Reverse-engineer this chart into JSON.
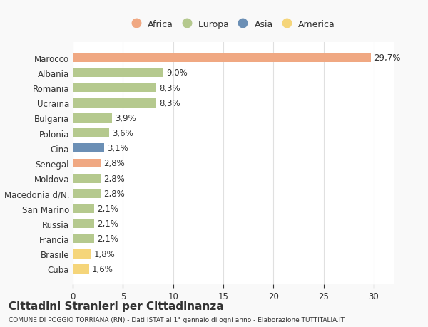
{
  "countries": [
    "Marocco",
    "Albania",
    "Romania",
    "Ucraina",
    "Bulgaria",
    "Polonia",
    "Cina",
    "Senegal",
    "Moldova",
    "Macedonia d/N.",
    "San Marino",
    "Russia",
    "Francia",
    "Brasile",
    "Cuba"
  ],
  "values": [
    29.7,
    9.0,
    8.3,
    8.3,
    3.9,
    3.6,
    3.1,
    2.8,
    2.8,
    2.8,
    2.1,
    2.1,
    2.1,
    1.8,
    1.6
  ],
  "labels": [
    "29,7%",
    "9,0%",
    "8,3%",
    "8,3%",
    "3,9%",
    "3,6%",
    "3,1%",
    "2,8%",
    "2,8%",
    "2,8%",
    "2,1%",
    "2,1%",
    "2,1%",
    "1,8%",
    "1,6%"
  ],
  "continents": [
    "Africa",
    "Europa",
    "Europa",
    "Europa",
    "Europa",
    "Europa",
    "Asia",
    "Africa",
    "Europa",
    "Europa",
    "Europa",
    "Europa",
    "Europa",
    "America",
    "America"
  ],
  "colors": {
    "Africa": "#F0A882",
    "Europa": "#B5C98E",
    "Asia": "#6B8FB5",
    "America": "#F5D57A"
  },
  "legend_order": [
    "Africa",
    "Europa",
    "Asia",
    "America"
  ],
  "xlim": [
    0,
    32
  ],
  "xticks": [
    0,
    5,
    10,
    15,
    20,
    25,
    30
  ],
  "title": "Cittadini Stranieri per Cittadinanza",
  "subtitle": "COMUNE DI POGGIO TORRIANA (RN) - Dati ISTAT al 1° gennaio di ogni anno - Elaborazione TUTTITALIA.IT",
  "background_color": "#f9f9f9",
  "bar_background": "#ffffff",
  "grid_color": "#e0e0e0",
  "text_color": "#333333"
}
